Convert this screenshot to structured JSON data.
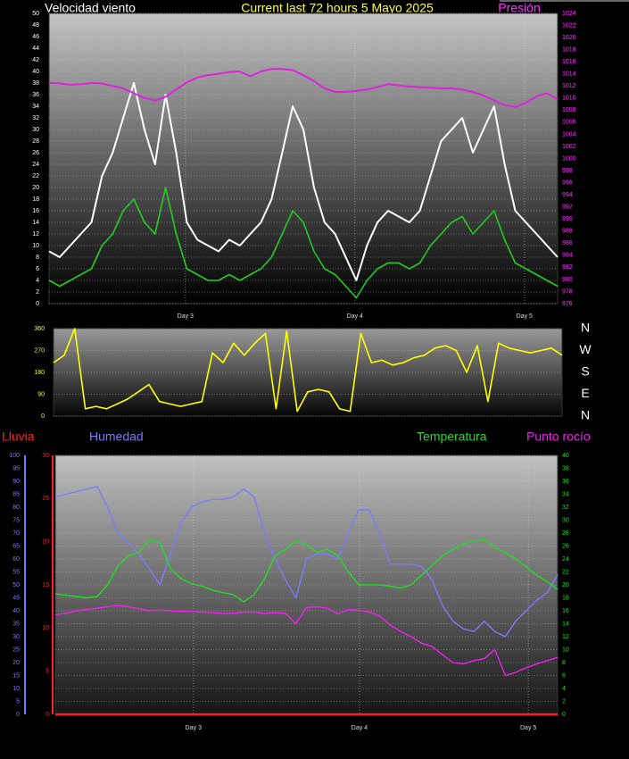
{
  "chart_data": [
    {
      "type": "line",
      "title": "Current last 72 hours 5 Mayo 2025",
      "ylabel": "Velocidad viento",
      "y2label": "Presión",
      "x": [
        0,
        1.5,
        3,
        4.5,
        6,
        7.5,
        9,
        10.5,
        12,
        13.5,
        15,
        16.5,
        18,
        19.5,
        21,
        22.5,
        24,
        25.5,
        27,
        28.5,
        30,
        31.5,
        33,
        34.5,
        36,
        37.5,
        39,
        40.5,
        42,
        43.5,
        45,
        46.5,
        48,
        49.5,
        51,
        52.5,
        54,
        55.5,
        57,
        58.5,
        60,
        61.5,
        63,
        64.5,
        66,
        67.5,
        69,
        70.5,
        72
      ],
      "xlim": [
        0,
        72
      ],
      "xticks": [
        {
          "value": 19.3,
          "label": "Day 3"
        },
        {
          "value": 43.3,
          "label": "Day 4"
        },
        {
          "value": 67.3,
          "label": "Day 5"
        }
      ],
      "ylim": [
        0,
        50
      ],
      "yticks": [
        0,
        2,
        4,
        6,
        8,
        10,
        12,
        14,
        16,
        18,
        20,
        22,
        24,
        26,
        28,
        30,
        32,
        34,
        36,
        38,
        40,
        42,
        44,
        46,
        48,
        50
      ],
      "y2lim": [
        976,
        1024
      ],
      "y2ticks": [
        976,
        978,
        980,
        982,
        984,
        986,
        988,
        990,
        992,
        994,
        996,
        998,
        1000,
        1002,
        1004,
        1006,
        1008,
        1010,
        1012,
        1014,
        1016,
        1018,
        1020,
        1022,
        1024
      ],
      "axis_colors": {
        "y": "#ffffff",
        "y2": "#ff33ff"
      },
      "grid": true,
      "series": [
        {
          "color": "#ffffff",
          "values": [
            9,
            8,
            10,
            12,
            14,
            22,
            26,
            32,
            38,
            30,
            24,
            36,
            26,
            14,
            11,
            10,
            9,
            11,
            10,
            12,
            14,
            18,
            26,
            34,
            30,
            20,
            14,
            12,
            8,
            4,
            10,
            14,
            16,
            15,
            14,
            16,
            22,
            28,
            30,
            32,
            26,
            30,
            34,
            24,
            16,
            14,
            12,
            10,
            8
          ]
        },
        {
          "color": "#22cc22",
          "values": [
            4,
            3,
            4,
            5,
            6,
            10,
            12,
            16,
            18,
            14,
            12,
            20,
            12,
            6,
            5,
            4,
            4,
            5,
            4,
            5,
            6,
            8,
            12,
            16,
            14,
            9,
            6,
            5,
            3,
            1,
            4,
            6,
            7,
            7,
            6,
            7,
            10,
            12,
            14,
            15,
            12,
            14,
            16,
            11,
            7,
            6,
            5,
            4,
            3
          ]
        },
        {
          "color": "#dd22dd",
          "axis": "y2",
          "values": [
            1012.5,
            1012.4,
            1012.2,
            1012.3,
            1012.5,
            1012.4,
            1012,
            1011.6,
            1010.8,
            1010,
            1009.6,
            1010.2,
            1011.4,
            1012.6,
            1013.4,
            1013.8,
            1014,
            1014.3,
            1014.4,
            1013.6,
            1014.4,
            1014.8,
            1014.8,
            1014.6,
            1013.8,
            1012.8,
            1011.6,
            1011,
            1011,
            1011.2,
            1011.4,
            1011.8,
            1012.3,
            1012.1,
            1011.9,
            1011.8,
            1011.7,
            1011.6,
            1011.6,
            1011.4,
            1011,
            1010.4,
            1009.6,
            1008.8,
            1008.5,
            1009.2,
            1010.3,
            1010.8,
            1009.8
          ]
        }
      ]
    },
    {
      "type": "line",
      "x": [
        0,
        1.5,
        3,
        4.5,
        6,
        7.5,
        9,
        10.5,
        12,
        13.5,
        15,
        16.5,
        18,
        19.5,
        21,
        22.5,
        24,
        25.5,
        27,
        28.5,
        30,
        31.5,
        33,
        34.5,
        36,
        37.5,
        39,
        40.5,
        42,
        43.5,
        45,
        46.5,
        48,
        49.5,
        51,
        52.5,
        54,
        55.5,
        57,
        58.5,
        60,
        61.5,
        63,
        64.5,
        66,
        67.5,
        69,
        70.5,
        72
      ],
      "xlim": [
        0,
        72
      ],
      "ylim": [
        0,
        360
      ],
      "yticks": [
        0,
        90,
        180,
        270,
        360
      ],
      "y2lim": [
        0,
        360
      ],
      "y2ticks": [
        {
          "value": 360,
          "label": "N"
        },
        {
          "value": 270,
          "label": "W"
        },
        {
          "value": 180,
          "label": "S"
        },
        {
          "value": 90,
          "label": "E"
        },
        {
          "value": 0,
          "label": "N"
        }
      ],
      "axis_colors": {
        "y": "#ffff00",
        "y2": "#ffffff"
      },
      "grid": true,
      "series": [
        {
          "color": "#ffff00",
          "values": [
            220,
            250,
            360,
            30,
            40,
            30,
            50,
            70,
            100,
            130,
            60,
            50,
            40,
            50,
            60,
            260,
            220,
            300,
            250,
            300,
            340,
            30,
            350,
            20,
            100,
            110,
            100,
            30,
            20,
            340,
            220,
            230,
            210,
            220,
            240,
            250,
            280,
            290,
            270,
            180,
            290,
            60,
            300,
            280,
            270,
            260,
            270,
            280,
            250
          ]
        }
      ]
    },
    {
      "type": "line",
      "x": [
        0,
        1.5,
        3,
        4.5,
        6,
        7.5,
        9,
        10.5,
        12,
        13.5,
        15,
        16.5,
        18,
        19.5,
        21,
        22.5,
        24,
        25.5,
        27,
        28.5,
        30,
        31.5,
        33,
        34.5,
        36,
        37.5,
        39,
        40.5,
        42,
        43.5,
        45,
        46.5,
        48,
        49.5,
        51,
        52.5,
        54,
        55.5,
        57,
        58.5,
        60,
        61.5,
        63,
        64.5,
        66,
        67.5,
        69,
        70.5,
        72
      ],
      "xlim": [
        0,
        72
      ],
      "xticks": [
        {
          "value": 19.8,
          "label": "Day 3"
        },
        {
          "value": 43.6,
          "label": "Day 4"
        },
        {
          "value": 67.8,
          "label": "Day 5"
        }
      ],
      "ylim": [
        0,
        100
      ],
      "yticks": [
        0,
        5,
        10,
        15,
        20,
        25,
        30,
        35,
        40,
        45,
        50,
        55,
        60,
        65,
        70,
        75,
        80,
        85,
        90,
        95,
        100
      ],
      "y2lim": [
        0,
        40
      ],
      "y2ticks": [
        0,
        2,
        4,
        6,
        8,
        10,
        12,
        14,
        16,
        18,
        20,
        22,
        24,
        26,
        28,
        30,
        32,
        34,
        36,
        38,
        40
      ],
      "y3lim": [
        0,
        30
      ],
      "y3ticks": [
        0,
        5,
        10,
        15,
        20,
        25,
        30
      ],
      "axis_colors": {
        "y": "#7b7bff",
        "y2": "#22dd22",
        "y3": "#ff2020"
      },
      "grid": true,
      "series": [
        {
          "name": "Lluvia",
          "color": "#ff2020",
          "axis": "y3",
          "values": [
            0,
            0,
            0,
            0,
            0,
            0,
            0,
            0,
            0,
            0,
            0,
            0,
            0,
            0,
            0,
            0,
            0,
            0,
            0,
            0,
            0,
            0,
            0,
            0,
            0,
            0,
            0,
            0,
            0,
            0,
            0,
            0,
            0,
            0,
            0,
            0,
            0,
            0,
            0,
            0,
            0,
            0,
            0,
            0,
            0,
            0,
            0,
            0,
            0
          ]
        },
        {
          "name": "Humedad",
          "color": "#7b7bff",
          "values": [
            84,
            85,
            86,
            87,
            88,
            80,
            70,
            66,
            62,
            56,
            50,
            62,
            74,
            80,
            82,
            83,
            83,
            84,
            87,
            84,
            70,
            60,
            52,
            45,
            60,
            62,
            62,
            60,
            70,
            79,
            79,
            70,
            58,
            58,
            58,
            57,
            52,
            42,
            36,
            33,
            32,
            36,
            32,
            30,
            36,
            40,
            44,
            47,
            54
          ]
        },
        {
          "name": "Temperatura",
          "color": "#22dd22",
          "axis": "y2",
          "values": [
            18.6,
            18.4,
            18.2,
            18,
            18.2,
            20,
            23,
            24.5,
            25,
            27,
            26.5,
            22.5,
            21,
            20.2,
            19.8,
            19.2,
            18.8,
            18.5,
            17.4,
            18.5,
            21,
            24.5,
            25.5,
            26.8,
            26.2,
            25,
            25.5,
            24.5,
            22,
            20,
            20,
            20,
            19.8,
            19.5,
            20,
            21.5,
            23,
            24.5,
            25.5,
            26.3,
            26.8,
            27,
            25.8,
            25,
            24,
            22.8,
            21.5,
            20.5,
            19.3
          ]
        },
        {
          "name": "Punto rocío",
          "color": "#ee22ee",
          "axis": "y2",
          "values": [
            15.4,
            15.6,
            16,
            16.2,
            16.4,
            16.6,
            16.8,
            16.6,
            16.3,
            16,
            16.1,
            16,
            15.9,
            15.9,
            15.8,
            15.7,
            15.6,
            15.6,
            15.8,
            15.8,
            15.6,
            15.7,
            15.6,
            14,
            16.5,
            16.6,
            16.4,
            15.5,
            16.2,
            16.1,
            15.8,
            15.2,
            13.8,
            12.8,
            12,
            11,
            10.5,
            9.2,
            8,
            7.8,
            8.3,
            8.6,
            10,
            6,
            6.5,
            7.2,
            7.8,
            8.3,
            8.8
          ]
        }
      ]
    }
  ]
}
